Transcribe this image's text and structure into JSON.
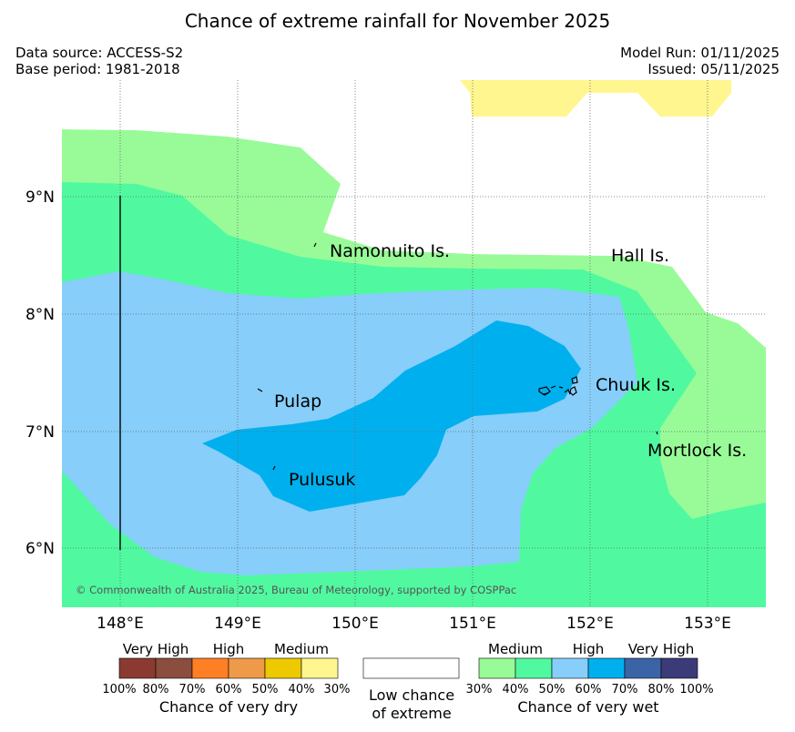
{
  "title": "Chance of extreme rainfall for November 2025",
  "meta": {
    "data_source": "Data source: ACCESS-S2",
    "base_period": "Base period: 1981-2018",
    "model_run": "Model Run: 01/11/2025",
    "issued": "Issued: 05/11/2025"
  },
  "map": {
    "lat_ticks": [
      "9°N",
      "8°N",
      "7°N",
      "6°N"
    ],
    "lon_ticks": [
      "148°E",
      "149°E",
      "150°E",
      "151°E",
      "152°E",
      "153°E"
    ],
    "places": {
      "namonuito": "Namonuito Is.",
      "hall": "Hall Is.",
      "pulap": "Pulap",
      "chuuk": "Chuuk Is.",
      "mortlock": "Mortlock Is.",
      "pulusuk": "Pulusuk"
    },
    "copyright": "© Commonwealth of Australia 2025, Bureau of Meteorology, supported by COSPPac",
    "colors": {
      "wet_medium_light": "#98fb98",
      "wet_medium": "#50f9a0",
      "wet_high_light": "#87cefa",
      "wet_high": "#00b0ee",
      "dry_medium": "#fff68f"
    }
  },
  "legend": {
    "dry": {
      "labels": [
        "Very High",
        "High",
        "Medium"
      ],
      "percents": [
        "100%",
        "80%",
        "70%",
        "60%",
        "50%",
        "40%",
        "30%"
      ],
      "caption": "Chance of very dry",
      "colors": [
        "#8b3a32",
        "#8b4d3e",
        "#ff7f24",
        "#ee9a49",
        "#eec900",
        "#fff68f"
      ]
    },
    "neutral": {
      "caption_line1": "Low chance",
      "caption_line2": "of extreme"
    },
    "wet": {
      "labels": [
        "Medium",
        "High",
        "Very High"
      ],
      "percents": [
        "30%",
        "40%",
        "50%",
        "60%",
        "70%",
        "80%",
        "100%"
      ],
      "caption": "Chance of very wet",
      "colors": [
        "#98fb98",
        "#50f9a0",
        "#87cefa",
        "#00b0ee",
        "#3a64a6",
        "#3c3b7a"
      ]
    }
  }
}
